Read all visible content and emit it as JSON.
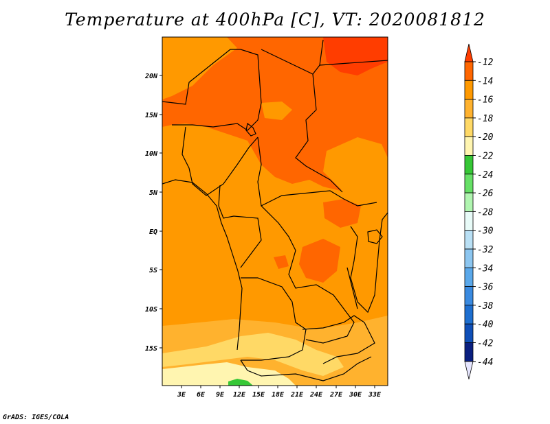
{
  "title": "Temperature at 400hPa [C], VT: 2020081812",
  "footer": "GrADS: IGES/COLA",
  "map": {
    "lat_labels": [
      "20N",
      "15N",
      "10N",
      "5N",
      "EQ",
      "5S",
      "10S",
      "15S"
    ],
    "lon_labels": [
      "3E",
      "6E",
      "9E",
      "12E",
      "15E",
      "18E",
      "21E",
      "24E",
      "27E",
      "30E",
      "33E"
    ]
  },
  "colorbar": {
    "labels": [
      "-12",
      "-14",
      "-16",
      "-18",
      "-20",
      "-22",
      "-24",
      "-26",
      "-28",
      "-30",
      "-32",
      "-34",
      "-36",
      "-38",
      "-40",
      "-42",
      "-44"
    ],
    "colors": [
      "#ff3d00",
      "#ff6600",
      "#ff9900",
      "#ffb22e",
      "#ffd966",
      "#fff5b0",
      "#36c736",
      "#66e066",
      "#b0f5b0",
      "#e8fbf8",
      "#b9e0f5",
      "#8cc6f0",
      "#5aa8ea",
      "#3a8ae0",
      "#1e6fd0",
      "#0f4fb8",
      "#0a1f80"
    ]
  },
  "legend_colors": {
    "cm12": "#ff6600",
    "cm14": "#ff9900",
    "cm16": "#ffb22e",
    "cm18": "#ffd966",
    "cm20": "#fff5b0",
    "cm22": "#36c736"
  }
}
